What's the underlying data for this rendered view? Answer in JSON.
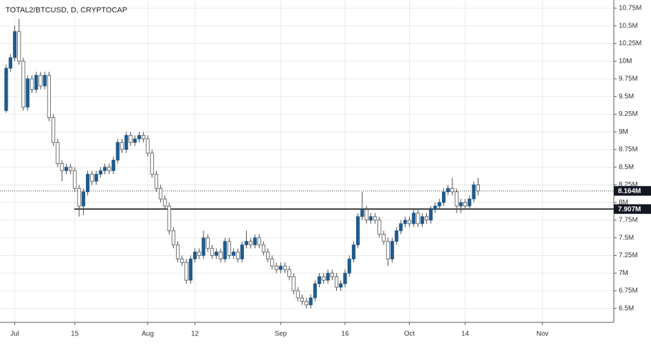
{
  "chart_data": {
    "type": "candlestick",
    "title": "TOTAL2/BTCUSD, D, CRYPTOCAP",
    "categories": [
      null,
      null,
      "Jul",
      null,
      null,
      null,
      null,
      null,
      null,
      null,
      null,
      null,
      null,
      null,
      null,
      null,
      "15",
      null,
      null,
      null,
      null,
      null,
      null,
      null,
      null,
      null,
      null,
      null,
      null,
      null,
      null,
      null,
      null,
      "Aug",
      null,
      null,
      null,
      null,
      null,
      null,
      null,
      null,
      null,
      null,
      "12",
      null,
      null,
      null,
      null,
      null,
      null,
      null,
      null,
      null,
      null,
      null,
      null,
      null,
      null,
      null,
      null,
      null,
      null,
      null,
      "Sep",
      null,
      null,
      null,
      null,
      null,
      null,
      null,
      null,
      null,
      null,
      null,
      null,
      null,
      null,
      "16",
      null,
      null,
      null,
      null,
      null,
      null,
      null,
      null,
      null,
      null,
      null,
      null,
      null,
      null,
      "Oct",
      null,
      null,
      null,
      null,
      null,
      null,
      null,
      null,
      null,
      null,
      null,
      null,
      "14",
      null,
      null,
      null,
      null,
      null,
      null,
      null,
      null,
      null,
      null,
      null,
      null,
      null,
      null,
      null,
      null,
      null,
      "Nov"
    ],
    "open": [
      9300000,
      9900000,
      10050000,
      10420000,
      10000000,
      9350000,
      9750000,
      9600000,
      9800000,
      9650000,
      9800000,
      9200000,
      8850000,
      8550000,
      8450000,
      8500000,
      8450000,
      8200000,
      7950000,
      8150000,
      8400000,
      8300000,
      8400000,
      8450000,
      8500000,
      8450000,
      8600000,
      8850000,
      8750000,
      8950000,
      8850000,
      8900000,
      8950000,
      8900000,
      8700000,
      8400000,
      8200000,
      8050000,
      7950000,
      7600000,
      7400000,
      7200000,
      7150000,
      6900000,
      7200000,
      7300000,
      7250000,
      7500000,
      7350000,
      7250000,
      7300000,
      7200000,
      7450000,
      7250000,
      7300000,
      7200000,
      7400000,
      7450000,
      7400000,
      7500000,
      7400000,
      7300000,
      7200000,
      7100000,
      7050000,
      7100000,
      7050000,
      6950000,
      6750000,
      6650000,
      6600000,
      6550000,
      6650000,
      6850000,
      6950000,
      6900000,
      7000000,
      6950000,
      6800000,
      6850000,
      7000000,
      7200000,
      7400000,
      7800000,
      7900000,
      7750000,
      7800000,
      7750000,
      7550000,
      7450000,
      7200000,
      7450000,
      7600000,
      7700000,
      7750000,
      7700000,
      7850000,
      7700000,
      7800000,
      7750000,
      7900000,
      7950000,
      8000000,
      8150000,
      8200000,
      8150000,
      7950000,
      8000000,
      7950000,
      8050000,
      8250000,
      null,
      null,
      null,
      null,
      null,
      null,
      null,
      null,
      null,
      null,
      null,
      null,
      null,
      null,
      null
    ],
    "high": [
      9950000,
      10100000,
      10500000,
      10600000,
      10050000,
      9800000,
      9800000,
      9850000,
      9850000,
      9850000,
      9850000,
      9250000,
      8900000,
      8600000,
      8550000,
      8550000,
      8500000,
      8250000,
      8200000,
      8450000,
      8450000,
      8450000,
      8500000,
      8550000,
      8550000,
      8650000,
      8900000,
      8900000,
      9000000,
      9000000,
      8950000,
      9000000,
      9000000,
      8950000,
      8750000,
      8450000,
      8250000,
      8100000,
      8000000,
      7650000,
      7450000,
      7250000,
      7200000,
      7250000,
      7350000,
      7350000,
      7600000,
      7550000,
      7400000,
      7350000,
      7350000,
      7500000,
      7500000,
      7350000,
      7350000,
      7450000,
      7600000,
      7500000,
      7550000,
      7550000,
      7450000,
      7350000,
      7250000,
      7150000,
      7150000,
      7150000,
      7100000,
      7000000,
      6800000,
      6700000,
      6650000,
      6700000,
      6900000,
      7000000,
      7000000,
      7050000,
      7050000,
      7000000,
      6900000,
      7050000,
      7250000,
      7450000,
      7850000,
      8150000,
      7950000,
      7850000,
      7850000,
      7800000,
      7600000,
      7500000,
      7500000,
      7650000,
      7750000,
      7800000,
      7800000,
      7900000,
      7900000,
      7850000,
      7850000,
      7950000,
      8000000,
      8050000,
      8200000,
      8250000,
      8350000,
      8200000,
      8050000,
      8050000,
      8100000,
      8300000,
      8350000,
      null,
      null,
      null,
      null,
      null,
      null,
      null,
      null,
      null,
      null,
      null,
      null,
      null,
      null,
      null
    ],
    "low": [
      9270000,
      9850000,
      10000000,
      9950000,
      9300000,
      9300000,
      9550000,
      9550000,
      9600000,
      9600000,
      9150000,
      8800000,
      8500000,
      8300000,
      8400000,
      8400000,
      8150000,
      7800000,
      7820000,
      8100000,
      8250000,
      8250000,
      8350000,
      8400000,
      8400000,
      8400000,
      8550000,
      8700000,
      8700000,
      8800000,
      8800000,
      8850000,
      8850000,
      8650000,
      8350000,
      8150000,
      8000000,
      7900000,
      7550000,
      7350000,
      7150000,
      7100000,
      6850000,
      6850000,
      7150000,
      7200000,
      7200000,
      7300000,
      7200000,
      7200000,
      7150000,
      7150000,
      7200000,
      7200000,
      7150000,
      7150000,
      7350000,
      7350000,
      7350000,
      7350000,
      7250000,
      7150000,
      7050000,
      7000000,
      7000000,
      7000000,
      6900000,
      6700000,
      6600000,
      6550000,
      6500000,
      6500000,
      6600000,
      6800000,
      6850000,
      6850000,
      6900000,
      6750000,
      6750000,
      6800000,
      6950000,
      7150000,
      7350000,
      7750000,
      7700000,
      7700000,
      7700000,
      7500000,
      7400000,
      7100000,
      7150000,
      7400000,
      7550000,
      7650000,
      7650000,
      7650000,
      7650000,
      7650000,
      7700000,
      7700000,
      7850000,
      7900000,
      7950000,
      8100000,
      8100000,
      7850000,
      7850000,
      7900000,
      7900000,
      8000000,
      8100000,
      null,
      null,
      null,
      null,
      null,
      null,
      null,
      null,
      null,
      null,
      null,
      null,
      null,
      null,
      null
    ],
    "close": [
      9900000,
      10050000,
      10420000,
      10000000,
      9350000,
      9750000,
      9600000,
      9800000,
      9650000,
      9800000,
      9200000,
      8850000,
      8550000,
      8450000,
      8500000,
      8450000,
      8200000,
      7950000,
      8150000,
      8400000,
      8300000,
      8400000,
      8450000,
      8500000,
      8450000,
      8600000,
      8850000,
      8750000,
      8950000,
      8850000,
      8900000,
      8950000,
      8900000,
      8700000,
      8400000,
      8200000,
      8050000,
      7950000,
      7600000,
      7400000,
      7200000,
      7150000,
      6900000,
      7200000,
      7300000,
      7250000,
      7500000,
      7350000,
      7250000,
      7300000,
      7200000,
      7450000,
      7250000,
      7300000,
      7200000,
      7400000,
      7450000,
      7400000,
      7500000,
      7400000,
      7300000,
      7200000,
      7100000,
      7050000,
      7100000,
      7050000,
      6950000,
      6750000,
      6650000,
      6600000,
      6550000,
      6650000,
      6850000,
      6950000,
      6900000,
      7000000,
      6950000,
      6800000,
      6850000,
      7000000,
      7200000,
      7400000,
      7800000,
      7900000,
      7750000,
      7800000,
      7750000,
      7550000,
      7450000,
      7200000,
      7450000,
      7600000,
      7700000,
      7750000,
      7700000,
      7850000,
      7700000,
      7800000,
      7750000,
      7900000,
      7950000,
      8000000,
      8150000,
      8200000,
      8150000,
      7950000,
      8000000,
      7950000,
      8050000,
      8250000,
      8164000,
      null,
      null,
      null,
      null,
      null,
      null,
      null,
      null,
      null,
      null,
      null,
      null,
      null,
      null,
      null
    ],
    "up_color": "#1f5a8c",
    "down_color": "#ffffff",
    "wick_color": "#4a4a4a",
    "ylim": [
      6303000,
      10866000
    ],
    "yticks": [
      {
        "value": 6500000,
        "label": "6.5M"
      },
      {
        "value": 6750000,
        "label": "6.75M"
      },
      {
        "value": 7000000,
        "label": "7M"
      },
      {
        "value": 7250000,
        "label": "7.25M"
      },
      {
        "value": 7500000,
        "label": "7.5M"
      },
      {
        "value": 7750000,
        "label": "7.75M"
      },
      {
        "value": 8000000,
        "label": "8M"
      },
      {
        "value": 8250000,
        "label": "8.25M"
      },
      {
        "value": 8500000,
        "label": "8.5M"
      },
      {
        "value": 8750000,
        "label": "8.75M"
      },
      {
        "value": 9000000,
        "label": "9M"
      },
      {
        "value": 9250000,
        "label": "9.25M"
      },
      {
        "value": 9500000,
        "label": "9.5M"
      },
      {
        "value": 9750000,
        "label": "9.75M"
      },
      {
        "value": 10000000,
        "label": "10M"
      },
      {
        "value": 10250000,
        "label": "10.25M"
      },
      {
        "value": 10500000,
        "label": "10.5M"
      },
      {
        "value": 10750000,
        "label": "10.75M"
      }
    ],
    "grid": true,
    "last_price": {
      "value": 8164000,
      "label": "8.164M"
    },
    "hline": {
      "value": 7907000,
      "label": "7.907M"
    }
  }
}
